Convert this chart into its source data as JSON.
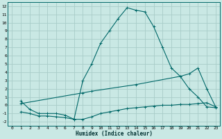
{
  "xlabel": "Humidex (Indice chaleur)",
  "bg_color": "#c9e8e4",
  "grid_color": "#a8ccc8",
  "line_color": "#006868",
  "xlim": [
    -0.5,
    23.5
  ],
  "ylim": [
    -2.5,
    12.5
  ],
  "xticks": [
    0,
    1,
    2,
    3,
    4,
    5,
    6,
    7,
    8,
    9,
    10,
    11,
    12,
    13,
    14,
    15,
    16,
    17,
    18,
    19,
    20,
    21,
    22,
    23
  ],
  "yticks": [
    -2,
    -1,
    0,
    1,
    2,
    3,
    4,
    5,
    6,
    7,
    8,
    9,
    10,
    11,
    12
  ],
  "line1_x": [
    1,
    2,
    3,
    4,
    5,
    6,
    7,
    8,
    9,
    10,
    11,
    12,
    13,
    14,
    15,
    16,
    17,
    18,
    19,
    20,
    21,
    22,
    23
  ],
  "line1_y": [
    0.5,
    -0.5,
    -1.0,
    -1.0,
    -1.0,
    -1.2,
    -1.7,
    3.0,
    5.0,
    7.5,
    9.0,
    10.5,
    11.8,
    11.5,
    11.3,
    9.5,
    7.0,
    4.5,
    3.5,
    2.0,
    1.0,
    -0.2,
    -0.3
  ],
  "line2_x": [
    1,
    2,
    3,
    4,
    5,
    6,
    7,
    8,
    9,
    10,
    11,
    12,
    13,
    14,
    15,
    16,
    17,
    18,
    19,
    20,
    21,
    22,
    23
  ],
  "line2_y": [
    -0.8,
    -1.0,
    -1.3,
    -1.3,
    -1.4,
    -1.5,
    -1.7,
    -1.7,
    -1.4,
    -1.0,
    -0.8,
    -0.6,
    -0.4,
    -0.3,
    -0.2,
    -0.1,
    0.0,
    0.0,
    0.1,
    0.1,
    0.2,
    0.3,
    -0.2
  ],
  "line3_x": [
    1,
    8,
    9,
    14,
    19,
    20,
    21,
    22,
    23
  ],
  "line3_y": [
    0.2,
    1.5,
    1.7,
    2.5,
    3.5,
    3.8,
    4.5,
    2.0,
    -0.2
  ]
}
